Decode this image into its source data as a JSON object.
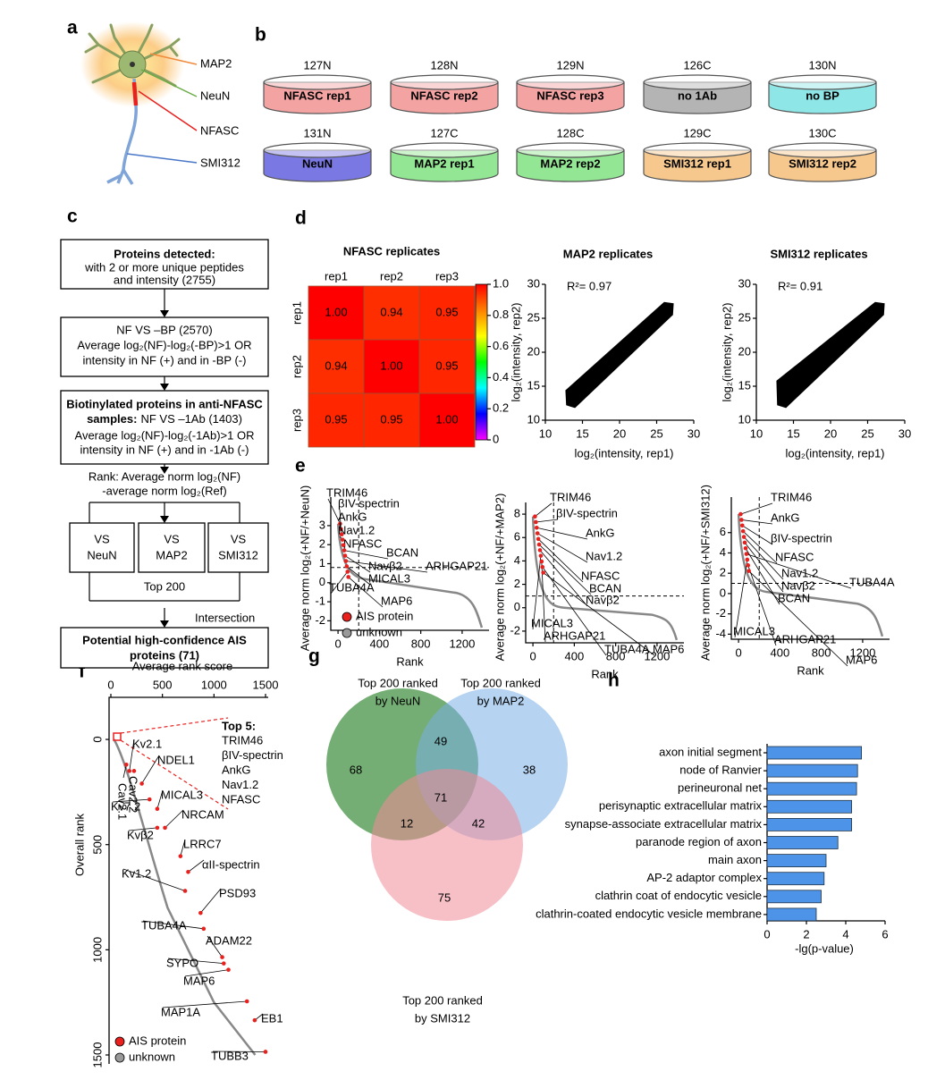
{
  "panel_labels": [
    "a",
    "b",
    "c",
    "d",
    "e",
    "f",
    "g",
    "h"
  ],
  "neuron": {
    "labels": [
      {
        "text": "MAP2",
        "color": "#f08a3c"
      },
      {
        "text": "NeuN",
        "color": "#6aab45"
      },
      {
        "text": "NFASC",
        "color": "#e8201e"
      },
      {
        "text": "SMI312",
        "color": "#4a78c8"
      }
    ]
  },
  "dishes": [
    {
      "channel": "127N",
      "label": "NFASC rep1",
      "color": "#f4a3a3"
    },
    {
      "channel": "128N",
      "label": "NFASC rep2",
      "color": "#f4a3a3"
    },
    {
      "channel": "129N",
      "label": "NFASC rep3",
      "color": "#f4a3a3"
    },
    {
      "channel": "126C",
      "label": "no 1Ab",
      "color": "#b4b4b4"
    },
    {
      "channel": "130N",
      "label": "no BP",
      "color": "#8fe6e6"
    },
    {
      "channel": "131N",
      "label": "NeuN",
      "color": "#7a78e2"
    },
    {
      "channel": "127C",
      "label": "MAP2 rep1",
      "color": "#93e693"
    },
    {
      "channel": "128C",
      "label": "MAP2 rep2",
      "color": "#93e693"
    },
    {
      "channel": "129C",
      "label": "SMI312 rep1",
      "color": "#f6c88e"
    },
    {
      "channel": "130C",
      "label": "SMI312 rep2",
      "color": "#f6c88e"
    }
  ],
  "flowchart": {
    "boxes": [
      {
        "lines": [
          "Proteins detected:",
          "with 2 or more unique peptides",
          "and intensity (2755)"
        ]
      },
      {
        "lines": [
          "NF VS –BP (2570)",
          "Average log₂(NF)-log₂(-BP)>1 OR",
          "intensity in NF (+)  and in -BP (-)"
        ]
      },
      {
        "lines": [
          "Biotinylated proteins in anti-NFASC",
          "samples:",
          "NF VS –1Ab (1403)",
          "Average log₂(NF)-log₂(-1Ab)>1 OR",
          "intensity in NF (+) and in -1Ab (-)"
        ]
      },
      {
        "lines": [
          "Potential high-confidence AIS",
          "proteins  (71)"
        ]
      }
    ],
    "rank_text": [
      "Rank: Average norm log₂(NF)",
      "-average norm log₂(Ref)"
    ],
    "compare": [
      [
        "VS",
        "NeuN"
      ],
      [
        "VS",
        "MAP2"
      ],
      [
        "VS",
        "SMI312"
      ]
    ],
    "top": "Top 200",
    "intersection": "Intersection"
  },
  "chart_data": [
    {
      "type": "heatmap",
      "title": "NFASC replicates",
      "xcategories": [
        "rep1",
        "rep2",
        "rep3"
      ],
      "ycategories": [
        "rep1",
        "rep2",
        "rep3"
      ],
      "values": [
        [
          1,
          0.94,
          0.95
        ],
        [
          0.94,
          1,
          0.95
        ],
        [
          0.95,
          0.95,
          1
        ]
      ],
      "value_labels": [
        [
          "1.00",
          "0.94",
          "0.95"
        ],
        [
          "0.94",
          "1.00",
          "0.95"
        ],
        [
          "0.95",
          "0.95",
          "1.00"
        ]
      ],
      "clim": [
        0,
        1
      ],
      "colors": [
        "#ff00ff",
        "#0000ff",
        "#00ffff",
        "#00ff00",
        "#ffff00",
        "#ff8000",
        "#ff0000"
      ],
      "colorbar_ticks": [
        {
          "value": 1,
          "label": "1.0"
        },
        0.8,
        0.6,
        0.4,
        0.2,
        0
      ]
    },
    {
      "type": "scatter",
      "title": "MAP2 replicates",
      "annotation": "R²= 0.97",
      "xlabel": "log₂(intensity, rep1)",
      "ylabel": "log₂(intensity, rep2)",
      "xlim": [
        10,
        30
      ],
      "ylim": [
        10,
        30
      ],
      "xticks": [
        10,
        15,
        20,
        25,
        30
      ],
      "yticks": [
        10,
        15,
        20,
        25,
        30
      ]
    },
    {
      "type": "scatter",
      "title": "SMI312 replicates",
      "annotation": "R²= 0.91",
      "xlabel": "log₂(intensity, rep1)",
      "ylabel": "log₂(intensity, rep2)",
      "xlim": [
        10,
        30
      ],
      "ylim": [
        10,
        30
      ],
      "xticks": [
        10,
        15,
        20,
        25,
        30
      ],
      "yticks": [
        10,
        15,
        20,
        25,
        30
      ]
    },
    {
      "type": "line",
      "ylabel": "Average norm log₂(+NF/+NeuN)",
      "xlabel": "Rank",
      "xlim": [
        -70,
        1460
      ],
      "ylim": [
        -2.5,
        4.5
      ],
      "xticks": [
        0,
        400,
        800,
        1200
      ],
      "yticks": [
        -2,
        -1,
        0,
        1,
        2,
        3
      ],
      "hline": 0.8,
      "vline": 200,
      "annotations": [
        "TRIM46",
        "βIV-spectrin",
        "AnkG",
        "Nav1.2",
        "NFASC",
        "BCAN",
        "Navβ2",
        "ARHGAP21",
        "MICAL3",
        "TUBA4A",
        "MAP6"
      ],
      "legend": [
        "AIS protein",
        "unknown"
      ]
    },
    {
      "type": "line",
      "ylabel": "Average norm log₂(+NF/+MAP2)",
      "xlabel": "Rank",
      "xlim": [
        -70,
        1460
      ],
      "ylim": [
        -3,
        9
      ],
      "xticks": [
        0,
        400,
        800,
        1200
      ],
      "yticks": [
        -2,
        0,
        2,
        4,
        6,
        8
      ],
      "hline": 1,
      "vline": 200,
      "annotations": [
        "TRIM46",
        "βIV-spectrin",
        "AnkG",
        "Nav1.2",
        "NFASC",
        "BCAN",
        "Navβ2",
        "MICAL3",
        "ARHGAP21",
        "TUBA4A",
        "MAP6"
      ]
    },
    {
      "type": "line",
      "ylabel": "Average norm log₂(+NF/+SMI312)",
      "xlabel": "Rank",
      "xlim": [
        -70,
        1460
      ],
      "ylim": [
        -4.5,
        9.5
      ],
      "xticks": [
        0,
        400,
        800,
        1200
      ],
      "yticks": [
        -4,
        -2,
        0,
        2,
        4,
        6
      ],
      "hline": 1,
      "vline": 200,
      "annotations": [
        "TRIM46",
        "AnkG",
        "βIV-spectrin",
        "NFASC",
        "Nav1.2",
        "Navβ2",
        "BCAN",
        "TUBA4A",
        "MICAL3",
        "ARHGAP21",
        "MAP6"
      ]
    },
    {
      "type": "rank",
      "xlabel": "Average rank score",
      "ylabel": "Overall rank",
      "xlim": [
        0,
        1500
      ],
      "ylim": [
        -200,
        1500
      ],
      "xticks": [
        0,
        500,
        1000,
        1500
      ],
      "yticks": [
        0,
        500,
        1000,
        1500
      ],
      "annotations": [
        "Kv2.1",
        "NDEL1",
        "Cav2.1",
        "Cav2.2",
        "MICAL3",
        "NRCAM",
        "Kv7.2",
        "Kvβ2",
        "LRRC7",
        "αII-spectrin",
        "Kv1.2",
        "PSD93",
        "TUBA4A",
        "ADAM22",
        "SYPO",
        "MAP6",
        "MAP1A",
        "EB1",
        "TUBB3"
      ],
      "top5_title": "Top 5:",
      "top5": [
        "TRIM46",
        "βIV-spectrin",
        "AnkG",
        "Nav1.2",
        "NFASC"
      ],
      "legend": [
        "AIS protein",
        "unknown"
      ]
    },
    {
      "type": "venn",
      "sets": [
        {
          "name": [
            "Top 200 ranked",
            "by NeuN"
          ],
          "color": "#3f8f3f"
        },
        {
          "name": [
            "Top 200 ranked",
            "by MAP2"
          ],
          "color": "#7aaee6"
        },
        {
          "name": [
            "Top 200 ranked",
            "by SMI312"
          ],
          "color": "#f08a98"
        }
      ],
      "regions": [
        68,
        49,
        38,
        71,
        12,
        42,
        75
      ]
    },
    {
      "type": "bar",
      "categories": [
        "axon initial segment",
        "node of Ranvier",
        "perineuronal net",
        "perisynaptic extracellular matrix",
        "synapse-associate extracellular matrix",
        "paranode region of axon",
        "main axon",
        "AP-2 adaptor complex",
        "clathrin coat of endocytic vesicle",
        "clathrin-coated endocytic vesicle membrane"
      ],
      "values": [
        4.8,
        4.6,
        4.55,
        4.3,
        4.3,
        3.6,
        3.0,
        2.9,
        2.75,
        2.5
      ],
      "color": "#4d94e8",
      "xlim": [
        0,
        6
      ],
      "xticks": [
        0,
        2,
        4,
        6
      ],
      "xlabel": "-lg(p-value)"
    }
  ]
}
